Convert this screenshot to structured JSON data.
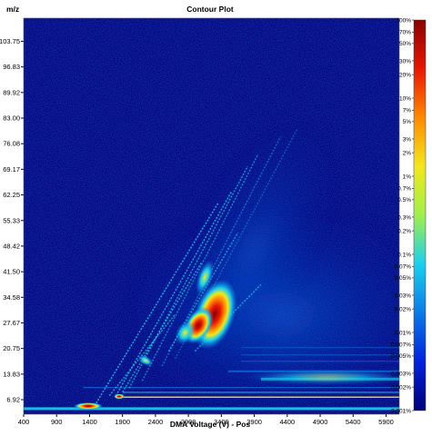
{
  "chart_data": {
    "type": "heatmap",
    "title": "Contour Plot",
    "xlabel": "DMA Voltage (V) - Pos",
    "ylabel": "m/z",
    "x_ticks": [
      "400",
      "900",
      "1400",
      "1900",
      "2400",
      "2900",
      "3400",
      "3900",
      "4400",
      "4900",
      "5400",
      "5900"
    ],
    "x_range": [
      400,
      6100
    ],
    "y_ticks": [
      "6.92",
      "13.83",
      "20.75",
      "27.67",
      "34.58",
      "41.50",
      "48.42",
      "55.33",
      "62.25",
      "69.17",
      "76.08",
      "83.00",
      "89.92",
      "96.83",
      "103.75"
    ],
    "y_range": [
      3.0,
      110.0
    ],
    "colorbar": {
      "scale": "log",
      "labels": [
        "100%",
        "70%",
        "50%",
        "30%",
        "20%",
        "10%",
        "7%",
        "5%",
        "3%",
        "2%",
        "1%",
        "0.7%",
        "0.5%",
        "0.3%",
        "0.2%",
        "0.1%",
        "0.07%",
        "0.05%",
        "0.03%",
        "0.02%",
        "0.01%",
        "0.007%",
        "0.005%",
        "0.003%",
        "0.002%",
        "0.001%"
      ],
      "label_values": [
        100,
        70,
        50,
        30,
        20,
        10,
        7,
        5,
        3,
        2,
        1,
        0.7,
        0.5,
        0.3,
        0.2,
        0.1,
        0.07,
        0.05,
        0.03,
        0.02,
        0.01,
        0.007,
        0.005,
        0.003,
        0.002,
        0.001
      ],
      "min_percent": 0.001,
      "max_percent": 100,
      "colors": [
        "#00007a",
        "#0022dd",
        "#0a7ae8",
        "#19d0ef",
        "#9ef04a",
        "#f2e81a",
        "#ff8a00",
        "#e81700",
        "#8a0000"
      ]
    }
  }
}
